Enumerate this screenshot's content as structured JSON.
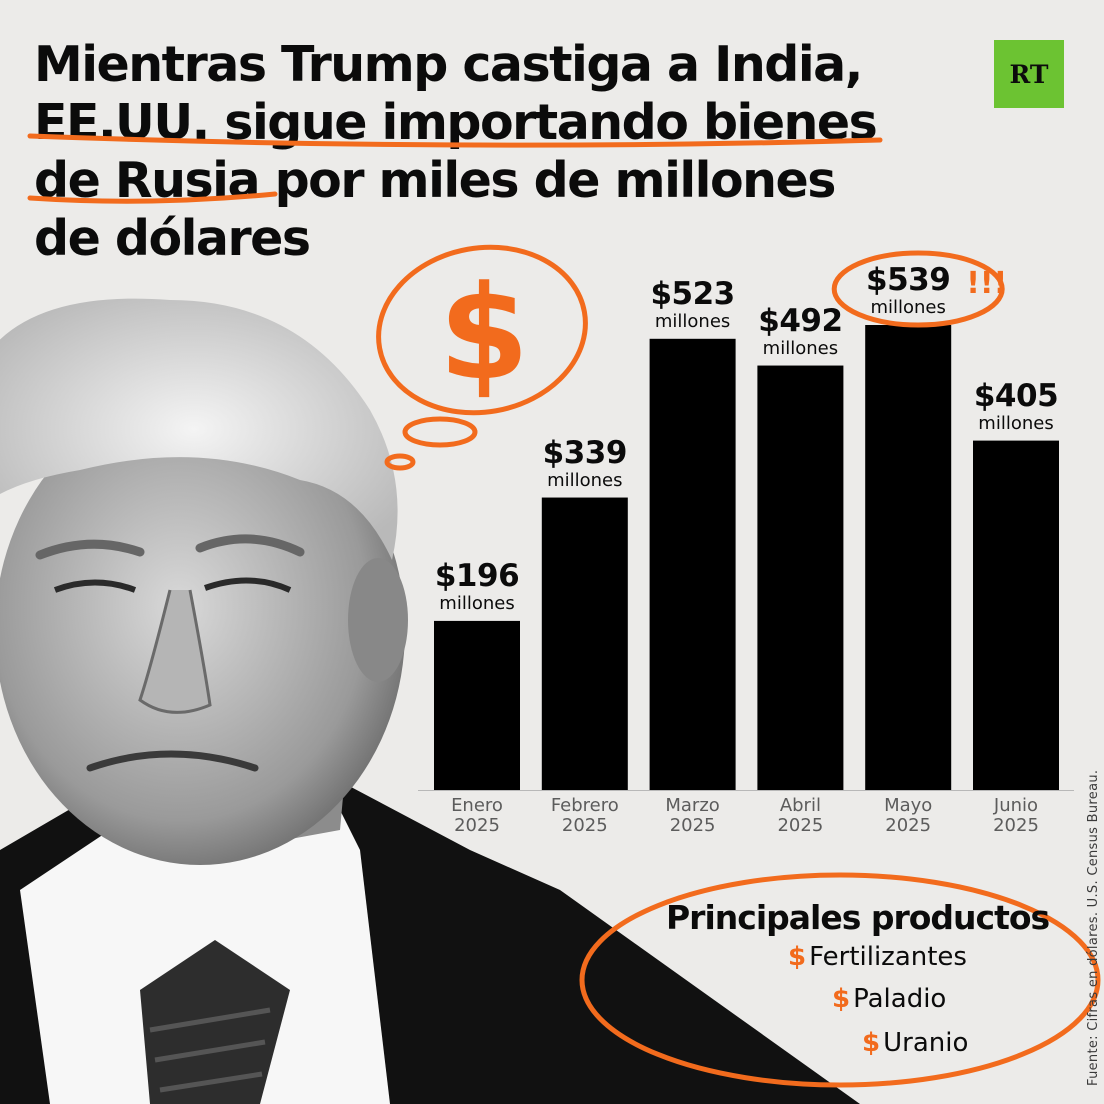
{
  "headline": {
    "line1": "Mientras Trump castiga a India,",
    "line2": "EE.UU. sigue importando bienes",
    "line3_highlight": "de Rusia",
    "line3_rest": " por miles de millones",
    "line4": "de dólares"
  },
  "logo": {
    "text": "RT",
    "color": "#6cc332"
  },
  "colors": {
    "accent": "#f26b1d",
    "bar": "#000000",
    "background": "#ecebe9"
  },
  "chart_data": {
    "type": "bar",
    "title": "",
    "xlabel": "",
    "ylabel": "",
    "unit": "millones",
    "categories": [
      {
        "month": "Enero",
        "year": "2025"
      },
      {
        "month": "Febrero",
        "year": "2025"
      },
      {
        "month": "Marzo",
        "year": "2025"
      },
      {
        "month": "Abril",
        "year": "2025"
      },
      {
        "month": "Mayo",
        "year": "2025"
      },
      {
        "month": "Junio",
        "year": "2025"
      }
    ],
    "values": [
      196,
      339,
      523,
      492,
      539,
      405
    ],
    "value_labels": [
      "$196",
      "$339",
      "$523",
      "$492",
      "$539",
      "$405"
    ],
    "highlight_index": 4,
    "highlight_mark": "!!!",
    "ylim": [
      0,
      539
    ],
    "grid": false,
    "legend": "none"
  },
  "products": {
    "title": "Principales productos",
    "items": [
      "Fertilizantes",
      "Paladio",
      "Uranio"
    ],
    "bullet_icon": "dollar-icon"
  },
  "source": "Fuente: Cifras en dólares. U.S. Census Bureau."
}
